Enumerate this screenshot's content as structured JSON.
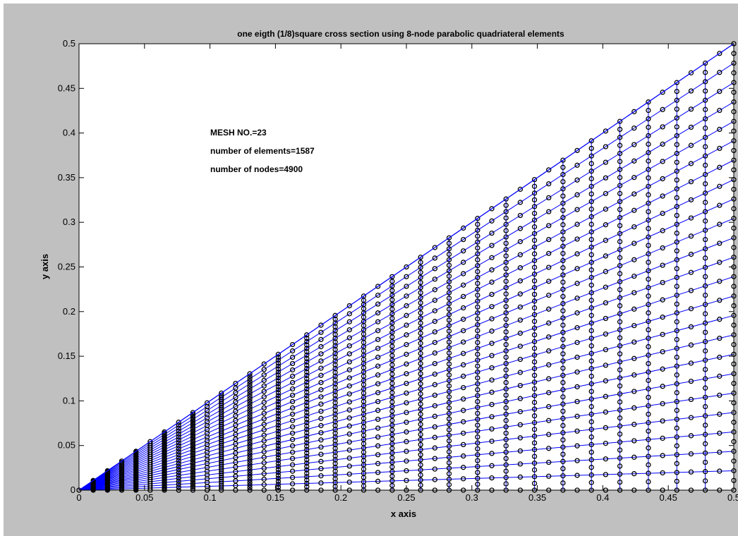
{
  "chart_data": {
    "type": "mesh",
    "title": "one eigth (1/8)square cross section  using  8-node parabolic quadriateral elements",
    "xlabel": "x axis",
    "ylabel": "y axis",
    "xlim": [
      0,
      0.5
    ],
    "ylim": [
      0,
      0.5
    ],
    "xticks": [
      0,
      0.05,
      0.1,
      0.15,
      0.2,
      0.25,
      0.3,
      0.35,
      0.4,
      0.45,
      0.5
    ],
    "yticks": [
      0,
      0.05,
      0.1,
      0.15,
      0.2,
      0.25,
      0.3,
      0.35,
      0.4,
      0.45,
      0.5
    ],
    "xtick_labels": [
      "0",
      "0.05",
      "0.1",
      "0.15",
      "0.2",
      "0.25",
      "0.3",
      "0.35",
      "0.4",
      "0.45",
      "0.5"
    ],
    "ytick_labels": [
      "0",
      "0.05",
      "0.1",
      "0.15",
      "0.2",
      "0.25",
      "0.3",
      "0.35",
      "0.4",
      "0.45",
      "0.5"
    ],
    "domain": {
      "vertices": [
        [
          0,
          0
        ],
        [
          0.5,
          0
        ],
        [
          0.5,
          0.5
        ]
      ],
      "shape": "triangle"
    },
    "mesh": {
      "element_type": "8-node parabolic quadrilateral",
      "divisions": 23,
      "node_marker": "o",
      "line_color": "#0000ff"
    },
    "annotations": [
      "MESH NO.=23",
      "number of elements=1587",
      "number of nodes=4900"
    ]
  }
}
